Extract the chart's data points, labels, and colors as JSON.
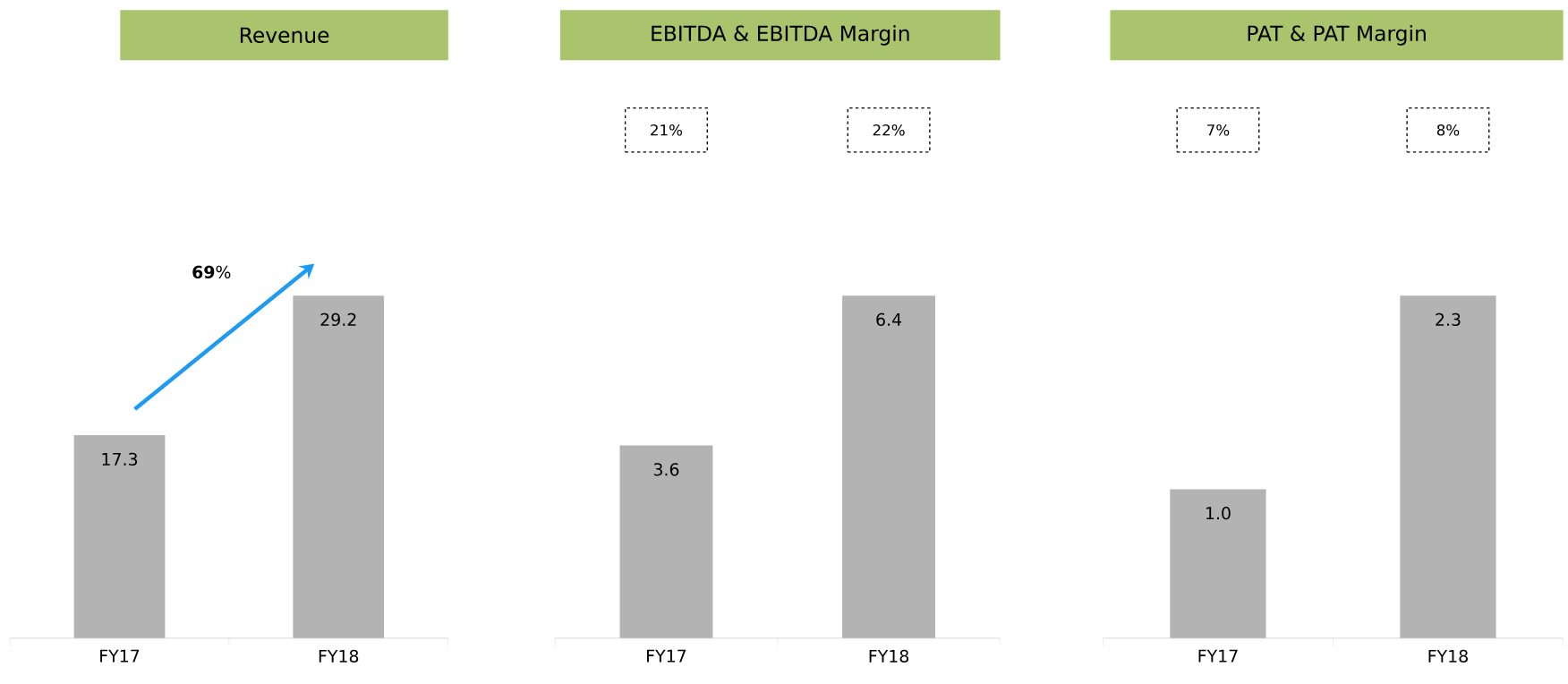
{
  "chart_data": [
    {
      "type": "bar",
      "title": "Revenue",
      "categories": [
        "FY17",
        "FY18"
      ],
      "values": [
        17.3,
        29.2
      ],
      "color": "#b3b3b3",
      "value_labels": [
        "17.3",
        "29.2"
      ],
      "annotations": [
        "**69**%"
      ]
    },
    {
      "type": "bar",
      "title": "EBITDA & EBITDA Margin",
      "categories": [
        "FY17",
        "FY18"
      ],
      "values": [
        3.6,
        6.4
      ],
      "color": "#b3b3b3",
      "value_labels": [
        "3.6",
        "6.4"
      ],
      "annotations": [
        "21%",
        "22%"
      ]
    },
    {
      "type": "bar",
      "title": "PAT & PAT Margin",
      "categories": [
        "FY17",
        "FY18"
      ],
      "values": [
        1.0,
        2.3
      ],
      "color": "#b3b3b3",
      "value_labels": [
        "1.0",
        "2.3"
      ],
      "annotations": [
        "7%",
        "8%"
      ]
    }
  ]
}
